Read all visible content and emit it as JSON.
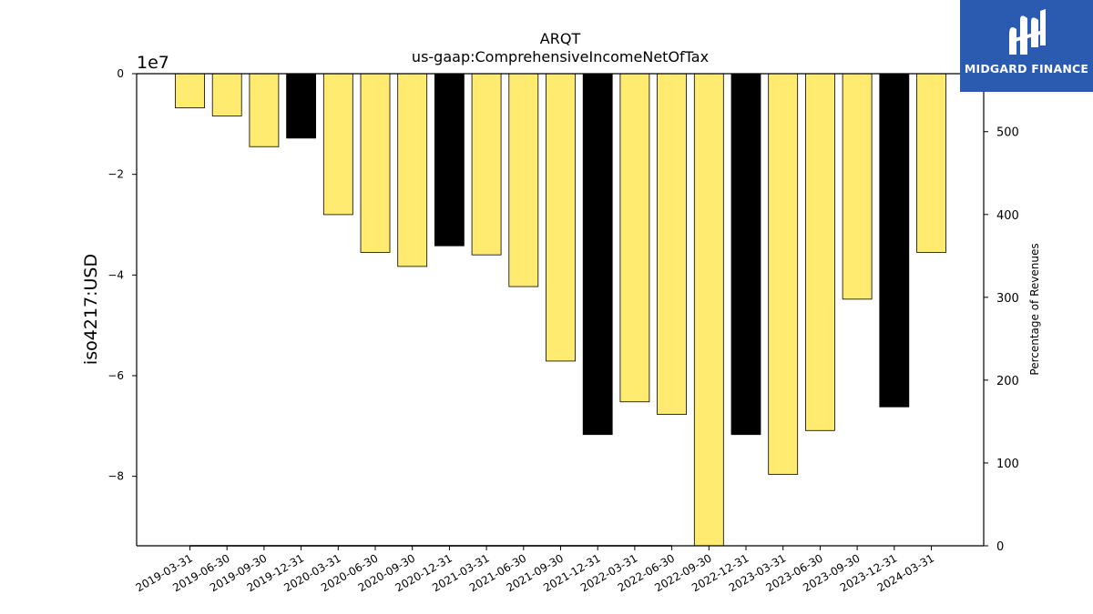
{
  "chart_data": {
    "type": "bar",
    "title": "ARQT",
    "subtitle": "us-gaap:ComprehensiveIncomeNetOfTax",
    "ylabel": "iso4217:USD",
    "y_offset_label": "1e7",
    "y2label": "Percentage of Revenues",
    "categories": [
      "2019-03-31",
      "2019-06-30",
      "2019-09-30",
      "2019-12-31",
      "2020-03-31",
      "2020-06-30",
      "2020-09-30",
      "2020-12-31",
      "2021-03-31",
      "2021-06-30",
      "2021-09-30",
      "2021-12-31",
      "2022-03-31",
      "2022-06-30",
      "2022-09-30",
      "2022-12-31",
      "2023-03-31",
      "2023-06-30",
      "2023-09-30",
      "2023-12-31",
      "2024-03-31"
    ],
    "values": [
      -6800000,
      -8400000,
      -14500000,
      -12800000,
      -28000000,
      -35500000,
      -38300000,
      -34200000,
      -36000000,
      -42300000,
      -57100000,
      -71700000,
      -65200000,
      -67700000,
      -93800000,
      -71700000,
      -79600000,
      -70900000,
      -44800000,
      -66200000,
      -35500000
    ],
    "bar_colors": [
      "#ffeb70",
      "#ffeb70",
      "#ffeb70",
      "#000000",
      "#ffeb70",
      "#ffeb70",
      "#ffeb70",
      "#000000",
      "#ffeb70",
      "#ffeb70",
      "#ffeb70",
      "#000000",
      "#ffeb70",
      "#ffeb70",
      "#ffeb70",
      "#000000",
      "#ffeb70",
      "#ffeb70",
      "#ffeb70",
      "#000000",
      "#ffeb70"
    ],
    "ylim": [
      -93800000,
      0
    ],
    "yticks": [
      0,
      -20000000,
      -40000000,
      -60000000,
      -80000000
    ],
    "ytick_labels": [
      "0",
      "−2",
      "−4",
      "−6",
      "−8"
    ],
    "y2lim": [
      0,
      570
    ],
    "y2ticks": [
      0,
      100,
      200,
      300,
      400,
      500
    ],
    "y2tick_labels": [
      "0",
      "100",
      "200",
      "300",
      "400",
      "500"
    ],
    "pct_series": {
      "name": "",
      "values": [
        0,
        0,
        0,
        0,
        0,
        0,
        0,
        0,
        0,
        0,
        0,
        0,
        0,
        0,
        null,
        null,
        null,
        null,
        null,
        null,
        null
      ]
    },
    "grid": false,
    "legend": "none"
  },
  "logo": {
    "text": "MIDGARD FINANCE",
    "bg_color": "#2a5bb0"
  }
}
